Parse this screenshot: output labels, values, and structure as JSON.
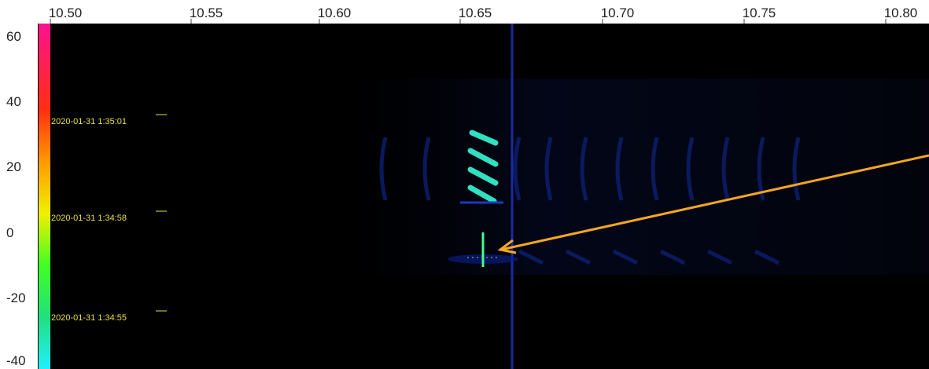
{
  "frequency_labels": [
    "10.50",
    "10.55",
    "10.60",
    "10.65",
    "10.70",
    "10.75",
    "10.80"
  ],
  "level_labels": [
    "60",
    "40",
    "20",
    "0",
    "-20",
    "-40"
  ],
  "timestamps": [
    "2020-01-31 1:35:01",
    "2020-01-31 1:34:58",
    "2020-01-31 1:34:55"
  ]
}
